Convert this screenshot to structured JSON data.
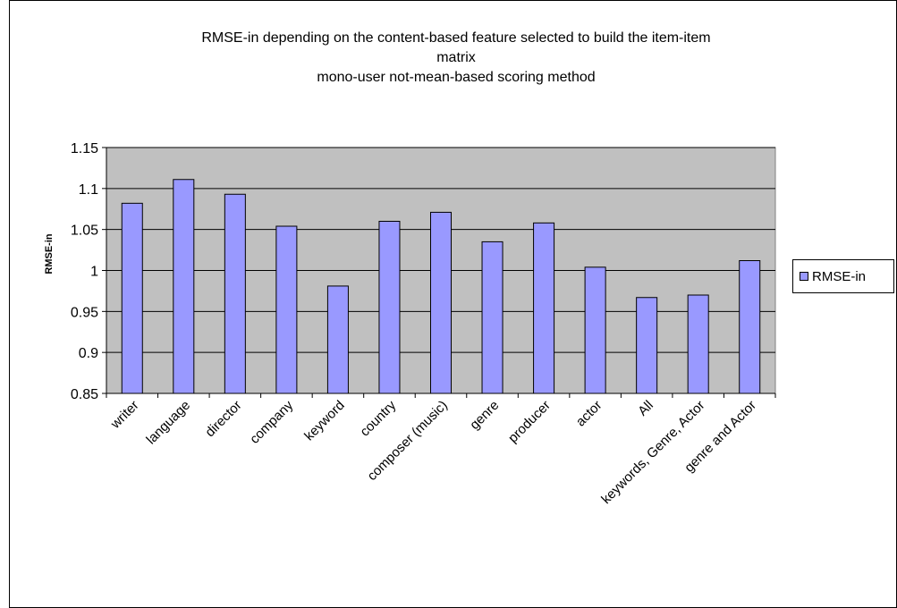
{
  "chart_data": {
    "type": "bar",
    "title_lines": [
      "RMSE-in depending on the content-based feature selected to build the item-item",
      "matrix",
      "mono-user not-mean-based scoring method"
    ],
    "xlabel": "",
    "ylabel": "RMSE-in",
    "ylim": [
      0.85,
      1.15
    ],
    "yticks": [
      "0.85",
      "0.9",
      "0.95",
      "1",
      "1.05",
      "1.1",
      "1.15"
    ],
    "ytick_values": [
      0.85,
      0.9,
      0.95,
      1.0,
      1.05,
      1.1,
      1.15
    ],
    "categories": [
      "writer",
      "language",
      "director",
      "company",
      "keyword",
      "country",
      "composer (music)",
      "genre",
      "producer",
      "actor",
      "All",
      "keywords, Genre, Actor",
      "genre and Actor"
    ],
    "series": [
      {
        "name": "RMSE-in",
        "values": [
          1.082,
          1.111,
          1.093,
          1.054,
          0.981,
          1.06,
          1.071,
          1.035,
          1.058,
          1.004,
          0.967,
          0.97,
          1.012
        ]
      }
    ],
    "grid": true,
    "legend_position": "right",
    "colors": {
      "bar": "#9999ff",
      "plot_background": "#c0c0c0",
      "gridline": "#000000"
    }
  }
}
